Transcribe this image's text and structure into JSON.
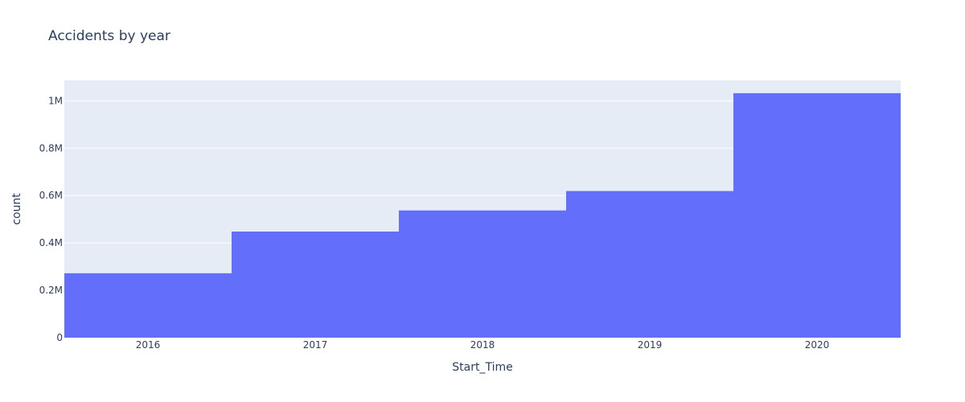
{
  "chart_data": {
    "type": "bar",
    "title": "Accidents by year",
    "xlabel": "Start_Time",
    "ylabel": "count",
    "categories": [
      "2016",
      "2017",
      "2018",
      "2019",
      "2020"
    ],
    "values": [
      272000,
      448000,
      537000,
      619000,
      1032000
    ],
    "ylim": [
      0,
      1086000
    ],
    "yticks": [
      0,
      200000,
      400000,
      600000,
      800000,
      1000000
    ],
    "ytick_labels": [
      "0",
      "0.2M",
      "0.4M",
      "0.6M",
      "0.8M",
      "1M"
    ],
    "grid": true,
    "bar_gap": 0
  },
  "colors": {
    "plot_background": "#e5ecf6",
    "bar": "#636efa",
    "grid": "#ffffff",
    "text": "#2a3f5f"
  }
}
